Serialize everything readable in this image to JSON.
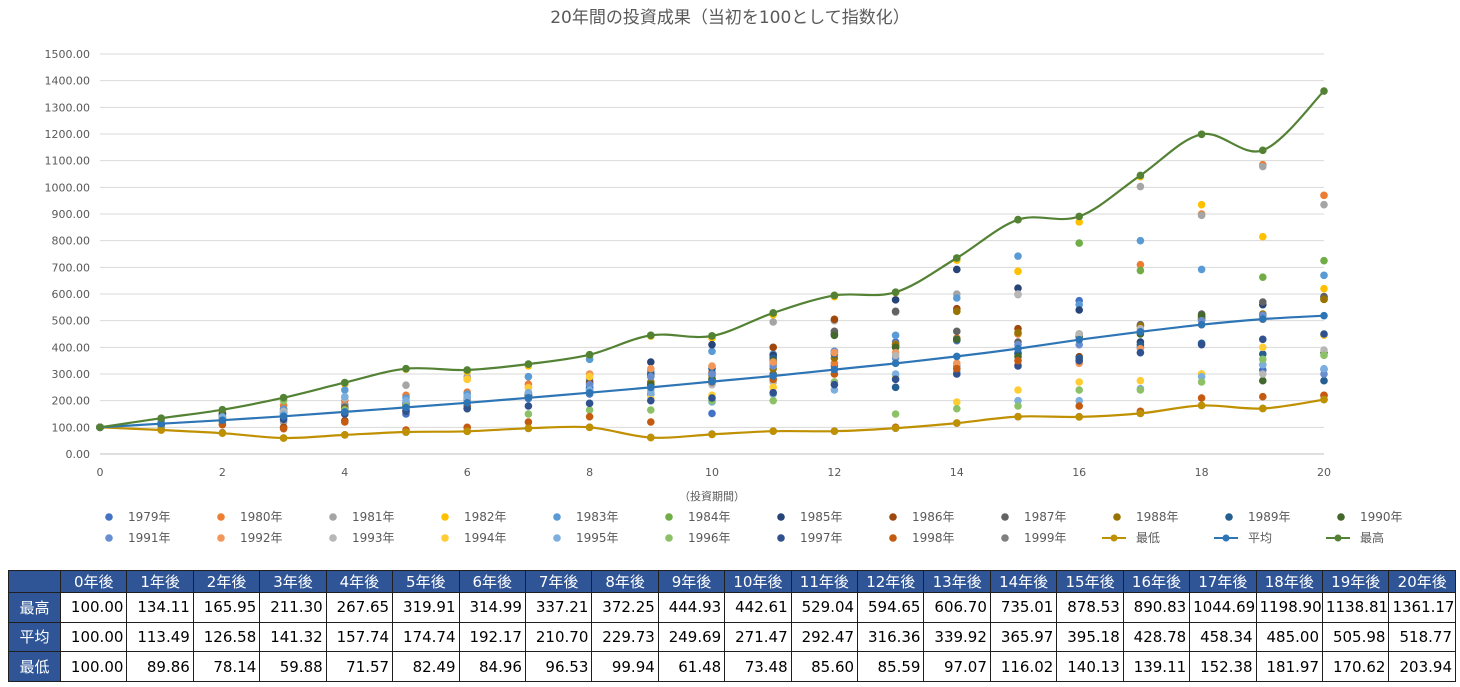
{
  "chart_data": {
    "type": "scatter",
    "title": "20年間の投資成果（当初を100として指数化）",
    "xlabel": "（投資期間）",
    "ylabel": "",
    "xlim": [
      0,
      20
    ],
    "ylim": [
      0,
      1500
    ],
    "x_ticks": [
      0,
      2,
      4,
      6,
      8,
      10,
      12,
      14,
      16,
      18,
      20
    ],
    "y_ticks": [
      "0.00",
      "100.00",
      "200.00",
      "300.00",
      "400.00",
      "500.00",
      "600.00",
      "700.00",
      "800.00",
      "900.00",
      "1000.00",
      "1100.00",
      "1200.00",
      "1300.00",
      "1400.00",
      "1500.00"
    ],
    "grid": "horizontal",
    "legend_position": "bottom",
    "scatter_series": [
      {
        "name": "1979年",
        "color": "#4472c4",
        "values": [
          100,
          120,
          150,
          170,
          185,
          150,
          172,
          208,
          225,
          225,
          152,
          297,
          330,
          420,
          425,
          380,
          575,
          400,
          510,
          315,
          318
        ]
      },
      {
        "name": "1980年",
        "color": "#ed7d31",
        "values": [
          100,
          125,
          155,
          182,
          200,
          220,
          232,
          262,
          300,
          268,
          268,
          340,
          340,
          412,
          435,
          450,
          350,
          710,
          900,
          1085,
          970
        ]
      },
      {
        "name": "1981年",
        "color": "#a5a5a5",
        "values": [
          100,
          130,
          152,
          120,
          180,
          258,
          290,
          290,
          280,
          290,
          328,
          495,
          500,
          532,
          600,
          598,
          445,
          1003,
          895,
          1078,
          935
        ]
      },
      {
        "name": "1982年",
        "color": "#ffc000",
        "values": [
          100,
          132,
          160,
          205,
          262,
          318,
          310,
          330,
          365,
          442,
          435,
          522,
          590,
          605,
          727,
          685,
          870,
          1040,
          935,
          815,
          620
        ]
      },
      {
        "name": "1983年",
        "color": "#5b9bd5",
        "values": [
          100,
          122,
          144,
          168,
          240,
          210,
          225,
          290,
          355,
          310,
          385,
          375,
          385,
          445,
          585,
          742,
          560,
          800,
          692,
          335,
          670
        ]
      },
      {
        "name": "1984年",
        "color": "#70ad47",
        "values": [
          100,
          134,
          166,
          211,
          268,
          320,
          315,
          337,
          372,
          445,
          443,
          529,
          595,
          607,
          735,
          879,
          791,
          688,
          1199,
          663,
          725
        ]
      },
      {
        "name": "1985年",
        "color": "#264478",
        "values": [
          100,
          118,
          150,
          160,
          170,
          190,
          200,
          220,
          270,
          345,
          410,
          370,
          450,
          578,
          692,
          622,
          540,
          420,
          515,
          560,
          590
        ]
      },
      {
        "name": "1986年",
        "color": "#9e480e",
        "values": [
          100,
          110,
          130,
          100,
          125,
          165,
          180,
          225,
          265,
          295,
          305,
          400,
          505,
          405,
          545,
          470,
          365,
          480,
          505,
          520,
          580
        ]
      },
      {
        "name": "1987年",
        "color": "#636363",
        "values": [
          100,
          115,
          140,
          155,
          175,
          180,
          200,
          220,
          240,
          260,
          280,
          300,
          460,
          535,
          460,
          420,
          450,
          485,
          525,
          570,
          590
        ]
      },
      {
        "name": "1988年",
        "color": "#997300",
        "values": [
          100,
          112,
          132,
          148,
          168,
          185,
          205,
          225,
          245,
          270,
          295,
          320,
          360,
          410,
          535,
          455,
          450,
          480,
          505,
          525,
          580
        ]
      },
      {
        "name": "1989年",
        "color": "#255e91",
        "values": [
          100,
          114,
          136,
          150,
          165,
          182,
          200,
          218,
          250,
          300,
          320,
          360,
          375,
          250,
          430,
          375,
          360,
          410,
          415,
          375,
          275
        ]
      },
      {
        "name": "1990年",
        "color": "#43682b",
        "values": [
          100,
          108,
          125,
          140,
          158,
          175,
          195,
          215,
          235,
          260,
          280,
          350,
          445,
          400,
          430,
          365,
          440,
          450,
          520,
          275,
          380
        ]
      },
      {
        "name": "1991年",
        "color": "#698ed0",
        "values": [
          100,
          115,
          130,
          145,
          160,
          190,
          210,
          230,
          260,
          290,
          300,
          330,
          385,
          360,
          330,
          410,
          410,
          460,
          500,
          520,
          300
        ]
      },
      {
        "name": "1992年",
        "color": "#f1975a",
        "values": [
          100,
          110,
          125,
          135,
          150,
          160,
          280,
          250,
          300,
          320,
          330,
          345,
          380,
          380,
          340,
          335,
          340,
          395,
          485,
          505,
          220
        ]
      },
      {
        "name": "1993年",
        "color": "#b7b7b7",
        "values": [
          100,
          118,
          135,
          160,
          210,
          180,
          200,
          210,
          230,
          240,
          260,
          270,
          270,
          370,
          300,
          600,
          450,
          470,
          300,
          300,
          390
        ]
      },
      {
        "name": "1994年",
        "color": "#ffcd33",
        "values": [
          100,
          112,
          128,
          150,
          165,
          175,
          280,
          248,
          290,
          210,
          220,
          250,
          300,
          290,
          195,
          240,
          270,
          275,
          300,
          400,
          445
        ]
      },
      {
        "name": "1995年",
        "color": "#7cafdd",
        "values": [
          100,
          116,
          140,
          150,
          215,
          200,
          215,
          230,
          240,
          230,
          195,
          225,
          240,
          300,
          310,
          200,
          200,
          245,
          290,
          335,
          320
        ]
      },
      {
        "name": "1996年",
        "color": "#8cc168",
        "values": [
          100,
          108,
          115,
          200,
          165,
          180,
          170,
          150,
          165,
          165,
          200,
          200,
          270,
          150,
          170,
          180,
          240,
          240,
          270,
          355,
          370
        ]
      },
      {
        "name": "1997年",
        "color": "#2f528f",
        "values": [
          100,
          110,
          125,
          130,
          150,
          160,
          170,
          180,
          190,
          200,
          210,
          230,
          260,
          280,
          300,
          330,
          350,
          380,
          410,
          430,
          450
        ]
      },
      {
        "name": "1998年",
        "color": "#c55a11",
        "values": [
          100,
          90,
          110,
          95,
          120,
          90,
          100,
          120,
          140,
          120,
          270,
          280,
          300,
          100,
          320,
          350,
          180,
          160,
          210,
          215,
          220
        ]
      },
      {
        "name": "1999年",
        "color": "#7f7f7f",
        "values": [
          100,
          95,
          80,
          60,
          72,
          82,
          85,
          96,
          100,
          62,
          75,
          86,
          86,
          97,
          116,
          140,
          140,
          152,
          182,
          171,
          204
        ]
      }
    ],
    "series": [
      {
        "name": "最低",
        "color": "#bf9000",
        "values": [
          100.0,
          89.86,
          78.14,
          59.88,
          71.57,
          82.49,
          84.96,
          96.53,
          99.94,
          61.48,
          73.48,
          85.6,
          85.59,
          97.07,
          116.02,
          140.13,
          139.11,
          152.38,
          181.97,
          170.62,
          203.94
        ]
      },
      {
        "name": "平均",
        "color": "#2e75b6",
        "values": [
          100.0,
          113.49,
          126.58,
          141.32,
          157.74,
          174.74,
          192.17,
          210.7,
          229.73,
          249.69,
          271.47,
          292.47,
          316.36,
          339.92,
          365.97,
          395.18,
          428.78,
          458.34,
          485.0,
          505.98,
          518.77
        ]
      },
      {
        "name": "最高",
        "color": "#548235",
        "values": [
          100.0,
          134.11,
          165.95,
          211.3,
          267.65,
          319.91,
          314.99,
          337.21,
          372.25,
          444.93,
          442.61,
          529.04,
          594.65,
          606.7,
          735.01,
          878.53,
          890.83,
          1044.69,
          1198.9,
          1138.81,
          1361.17
        ]
      }
    ]
  },
  "table": {
    "corner": "",
    "headers": [
      "0年後",
      "1年後",
      "2年後",
      "3年後",
      "4年後",
      "5年後",
      "6年後",
      "7年後",
      "8年後",
      "9年後",
      "10年後",
      "11年後",
      "12年後",
      "13年後",
      "14年後",
      "15年後",
      "16年後",
      "17年後",
      "18年後",
      "19年後",
      "20年後"
    ],
    "rows": [
      {
        "label": "最高",
        "cells": [
          "100.00",
          "134.11",
          "165.95",
          "211.30",
          "267.65",
          "319.91",
          "314.99",
          "337.21",
          "372.25",
          "444.93",
          "442.61",
          "529.04",
          "594.65",
          "606.70",
          "735.01",
          "878.53",
          "890.83",
          "1044.69",
          "1198.90",
          "1138.81",
          "1361.17"
        ]
      },
      {
        "label": "平均",
        "cells": [
          "100.00",
          "113.49",
          "126.58",
          "141.32",
          "157.74",
          "174.74",
          "192.17",
          "210.70",
          "229.73",
          "249.69",
          "271.47",
          "292.47",
          "316.36",
          "339.92",
          "365.97",
          "395.18",
          "428.78",
          "458.34",
          "485.00",
          "505.98",
          "518.77"
        ]
      },
      {
        "label": "最低",
        "cells": [
          "100.00",
          "89.86",
          "78.14",
          "59.88",
          "71.57",
          "82.49",
          "84.96",
          "96.53",
          "99.94",
          "61.48",
          "73.48",
          "85.60",
          "85.59",
          "97.07",
          "116.02",
          "140.13",
          "139.11",
          "152.38",
          "181.97",
          "170.62",
          "203.94"
        ]
      }
    ]
  }
}
